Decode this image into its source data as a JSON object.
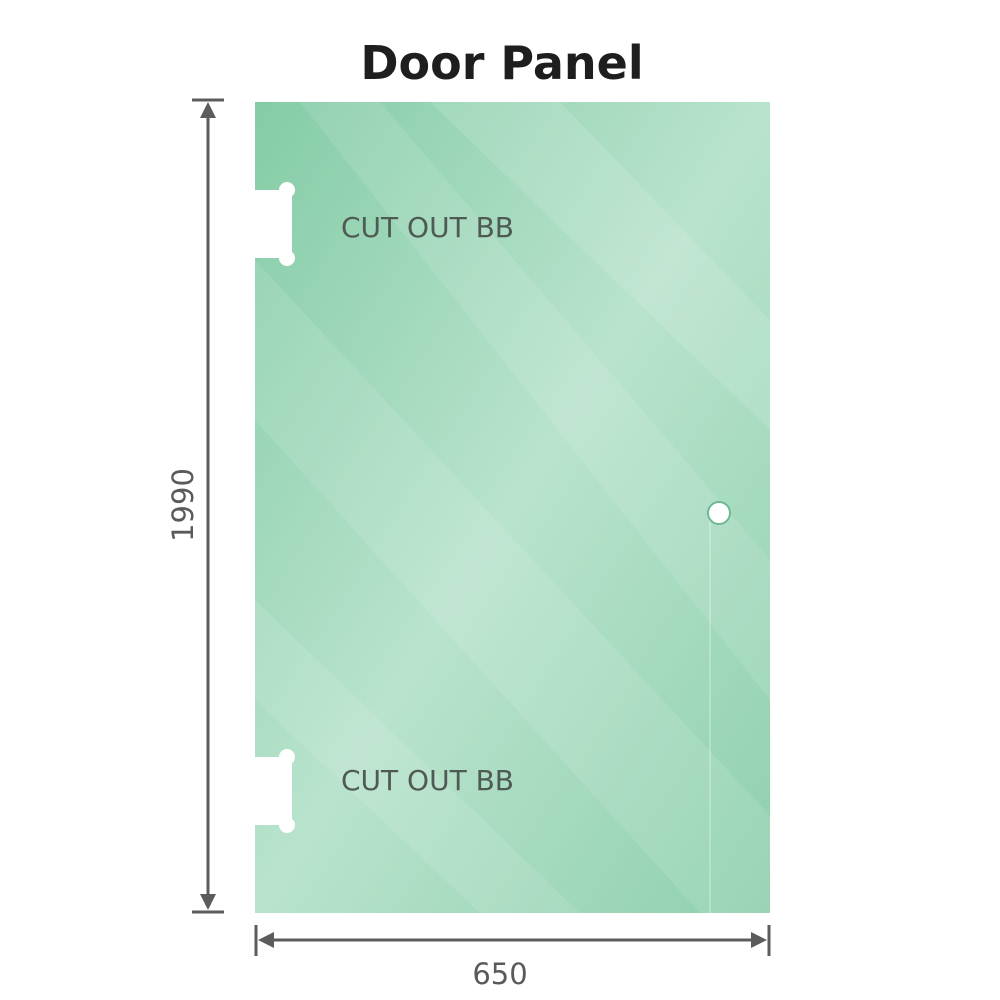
{
  "title": "Door Panel",
  "cutout_labels": [
    "CUT OUT BB",
    "CUT OUT BB"
  ],
  "dimensions": {
    "height": "1990",
    "width": "650"
  },
  "colors": {
    "glass": "#86cda8",
    "glass_light": "#bfe6d2",
    "dimension_line": "#5c5c5c",
    "title": "#1e1e1e"
  }
}
